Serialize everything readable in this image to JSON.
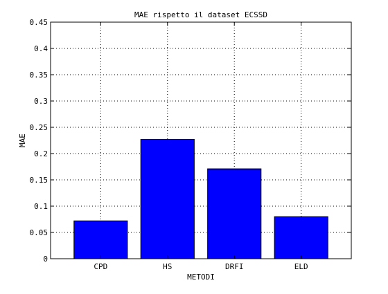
{
  "chart_data": {
    "type": "bar",
    "title": "MAE rispetto il dataset ECSSD",
    "xlabel": "METODI",
    "ylabel": "MAE",
    "categories": [
      "CPD",
      "HS",
      "DRFI",
      "ELD"
    ],
    "values": [
      0.072,
      0.227,
      0.171,
      0.08
    ],
    "ylim": [
      0,
      0.45
    ],
    "yticks": [
      "0",
      "0.05",
      "0.1",
      "0.15",
      "0.2",
      "0.25",
      "0.3",
      "0.35",
      "0.4",
      "0.45"
    ],
    "ytick_values": [
      0,
      0.05,
      0.1,
      0.15,
      0.2,
      0.25,
      0.3,
      0.35,
      0.4,
      0.45
    ],
    "grid": true,
    "bar_color": "#0000ff",
    "edge_color": "#000000"
  }
}
